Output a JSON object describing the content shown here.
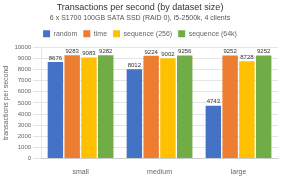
{
  "chart_data": {
    "type": "bar",
    "title": "Transactions per second (by dataset size)",
    "subtitle": "6 x S1700 100GB SATA SSD (RAID 0), i5-2500k, 4 clients",
    "categories": [
      "small",
      "medium",
      "large"
    ],
    "series": [
      {
        "name": "random",
        "color": "#4472c4",
        "values": [
          8676,
          8012,
          4743
        ]
      },
      {
        "name": "time",
        "color": "#ed7d31",
        "values": [
          9283,
          9224,
          9252
        ]
      },
      {
        "name": "sequence (256)",
        "color": "#ffc000",
        "values": [
          9083,
          9002,
          8728
        ]
      },
      {
        "name": "sequence (64k)",
        "color": "#70ad47",
        "values": [
          9282,
          9256,
          9252
        ]
      }
    ],
    "ylim": [
      0,
      10000
    ],
    "yticks": [
      0,
      1000,
      2000,
      3000,
      4000,
      5000,
      6000,
      7000,
      8000,
      9000,
      10000
    ],
    "ylabel": "transactions per second",
    "grid": true,
    "legend": "top",
    "data_labels": true
  }
}
